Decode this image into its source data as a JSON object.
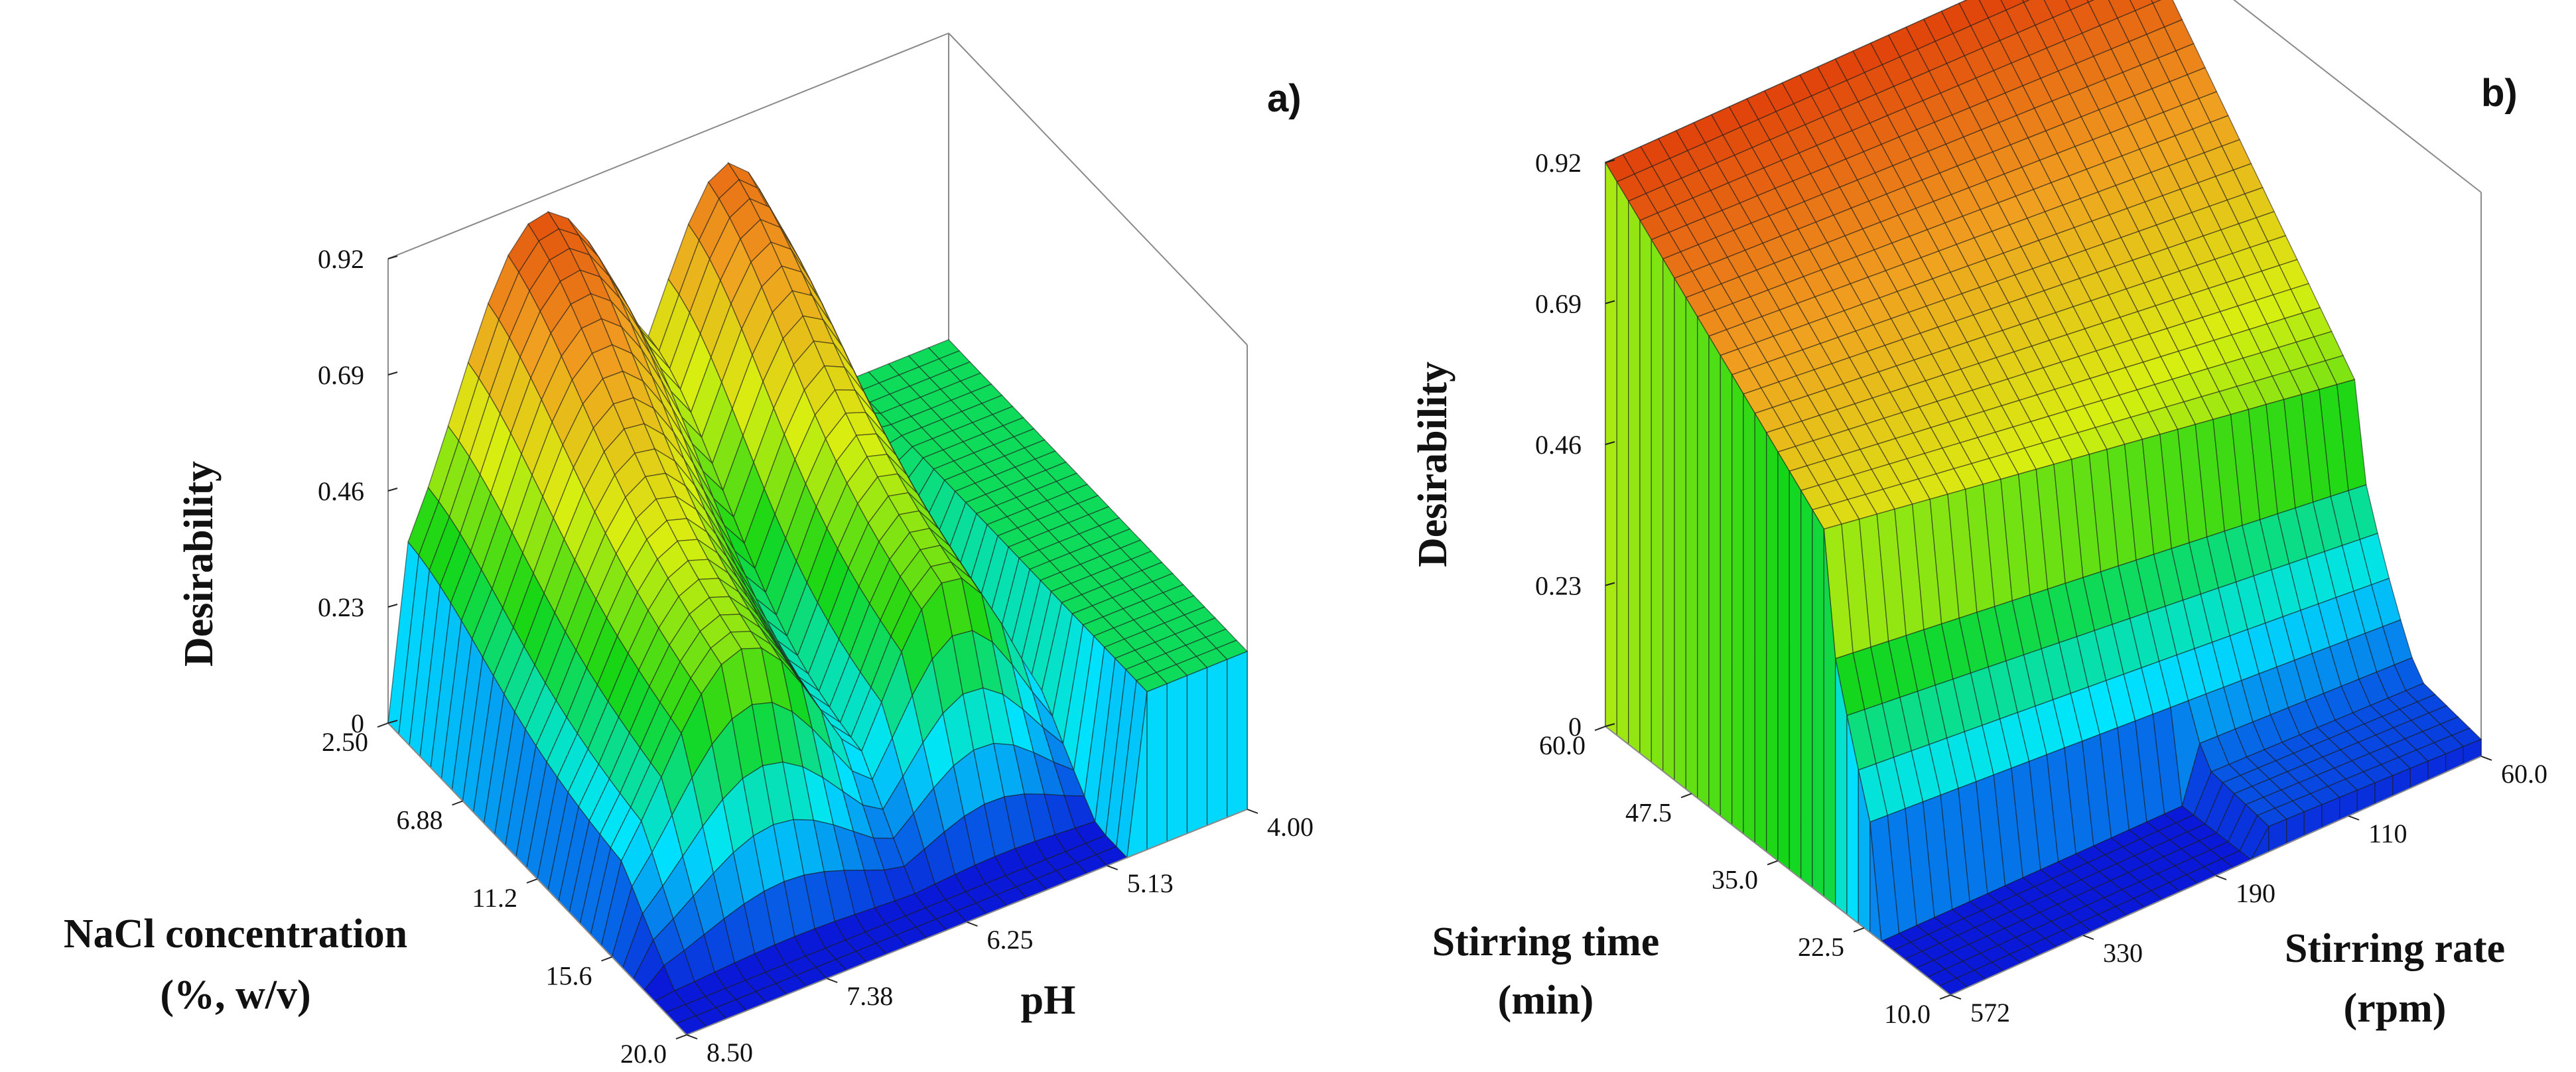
{
  "figure": {
    "panels": [
      "a)",
      "b)"
    ]
  },
  "chart_data": [
    {
      "type": "surface3d",
      "panel_label": "a)",
      "zlabel": "Desirability",
      "xlabel_lines": [
        "NaCl concentration",
        "(%, w/v)"
      ],
      "ylabel": "pH",
      "z_ticks": [
        "0",
        "0.23",
        "0.46",
        "0.69",
        "0.92"
      ],
      "z_range": [
        0,
        0.92
      ],
      "x_ticks": [
        "2.50",
        "6.88",
        "11.2",
        "15.6",
        "20.0"
      ],
      "x_range": [
        2.5,
        20.0
      ],
      "y_ticks": [
        "4.00",
        "5.13",
        "6.25",
        "7.38",
        "8.50"
      ],
      "y_range": [
        4.0,
        8.5
      ],
      "peak_desirability": 0.92,
      "colormap": [
        "#0a19d8",
        "#00e5ff",
        "#15d615",
        "#d8ef10",
        "#f0a020",
        "#e0400a"
      ]
    },
    {
      "type": "surface3d",
      "panel_label": "b)",
      "zlabel": "Desirability",
      "xlabel_lines": [
        "Stirring time",
        "(min)"
      ],
      "ylabel_lines": [
        "Stirring rate",
        "(rpm)"
      ],
      "z_ticks": [
        "0",
        "0.23",
        "0.46",
        "0.69",
        "0.92"
      ],
      "z_range": [
        0,
        0.92
      ],
      "x_ticks": [
        "60.0",
        "47.5",
        "35.0",
        "22.5",
        "10.0"
      ],
      "x_range": [
        10.0,
        60.0
      ],
      "y_ticks": [
        "60.0",
        "110",
        "190",
        "330",
        "572"
      ],
      "y_range": [
        60,
        572
      ],
      "peak_desirability": 0.92,
      "colormap": [
        "#0a19d8",
        "#00e5ff",
        "#15d615",
        "#d8ef10",
        "#f0a020",
        "#e0400a"
      ]
    }
  ]
}
